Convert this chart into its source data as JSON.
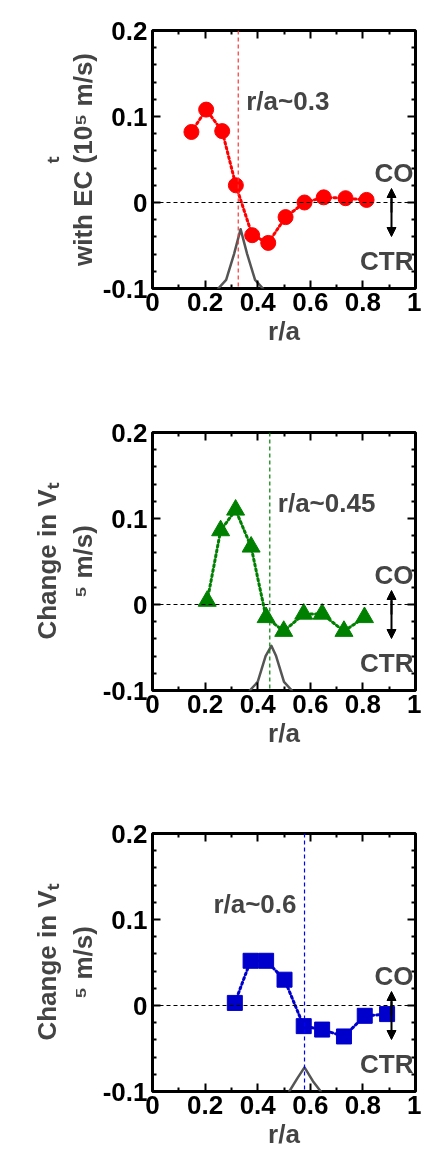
{
  "chart_data": [
    {
      "type": "line",
      "ylabel": "ₜ\nwith EC (10⁵ m/s)",
      "xlabel": "r/a",
      "xlim": [
        0,
        1
      ],
      "ylim": [
        -0.1,
        0.2
      ],
      "xticks": [
        0,
        0.2,
        0.4,
        0.6,
        0.8,
        1
      ],
      "yticks": [
        -0.1,
        0,
        0.1,
        0.2
      ],
      "marker": "circle",
      "line_style": "dotted",
      "grid": false,
      "series": [
        {
          "color": "#ff0000",
          "x": [
            0.148,
            0.204,
            0.265,
            0.317,
            0.379,
            0.44,
            0.506,
            0.578,
            0.651,
            0.734,
            0.814
          ],
          "values": [
            0.082,
            0.108,
            0.083,
            0.02,
            -0.038,
            -0.047,
            -0.017,
            0.0,
            0.006,
            0.005,
            0.003
          ]
        },
        {
          "color": "#555555",
          "marker": "none",
          "line_style": "solid",
          "x": [
            0.25,
            0.28,
            0.31,
            0.335,
            0.36,
            0.39,
            0.42
          ],
          "values": [
            -0.1,
            -0.09,
            -0.06,
            -0.031,
            -0.06,
            -0.09,
            -0.1
          ]
        }
      ],
      "ref_lines": [
        {
          "axis": "x",
          "value": 0.326,
          "label": "r/a~0.3",
          "color": "#ff3333",
          "line_style": "dashed"
        },
        {
          "axis": "y",
          "value": 0,
          "color": "#000000",
          "line_style": "dashed"
        }
      ],
      "annotations": [
        "CO",
        "CTR"
      ]
    },
    {
      "type": "line",
      "ylabel": "Change in Vₜ\n⁵ m/s)",
      "xlabel": "r/a",
      "xlim": [
        0,
        1
      ],
      "ylim": [
        -0.1,
        0.2
      ],
      "xticks": [
        0,
        0.2,
        0.4,
        0.6,
        0.8,
        1
      ],
      "yticks": [
        -0.1,
        0,
        0.1,
        0.2
      ],
      "marker": "triangle",
      "line_style": "dotted",
      "grid": false,
      "series": [
        {
          "color": "#008000",
          "x": [
            0.208,
            0.259,
            0.316,
            0.375,
            0.432,
            0.499,
            0.575,
            0.645,
            0.728,
            0.806
          ],
          "values": [
            0.004,
            0.086,
            0.11,
            0.067,
            -0.015,
            -0.031,
            -0.011,
            -0.011,
            -0.031,
            -0.015
          ]
        },
        {
          "color": "#555555",
          "marker": "none",
          "line_style": "solid",
          "x": [
            0.37,
            0.4,
            0.43,
            0.452,
            0.47,
            0.5,
            0.53
          ],
          "values": [
            -0.1,
            -0.09,
            -0.06,
            -0.048,
            -0.06,
            -0.09,
            -0.1
          ]
        }
      ],
      "ref_lines": [
        {
          "axis": "x",
          "value": 0.446,
          "label": "r/a~0.45",
          "color": "#008000",
          "line_style": "dashed"
        },
        {
          "axis": "y",
          "value": 0,
          "color": "#000000",
          "line_style": "dashed"
        }
      ],
      "annotations": [
        "CO",
        "CTR"
      ]
    },
    {
      "type": "line",
      "ylabel": "Change in Vₜ\n⁵ m/s)",
      "xlabel": "r/a",
      "xlim": [
        0,
        1
      ],
      "ylim": [
        -0.1,
        0.2
      ],
      "xticks": [
        0,
        0.2,
        0.4,
        0.6,
        0.8,
        1
      ],
      "yticks": [
        -0.1,
        0,
        0.1,
        0.2
      ],
      "marker": "square",
      "line_style": "dotted",
      "grid": false,
      "series": [
        {
          "color": "#0000cc",
          "x": [
            0.313,
            0.373,
            0.432,
            0.502,
            0.575,
            0.645,
            0.728,
            0.807,
            0.892
          ],
          "values": [
            0.003,
            0.052,
            0.052,
            0.03,
            -0.024,
            -0.028,
            -0.036,
            -0.012,
            -0.01
          ]
        },
        {
          "color": "#555555",
          "marker": "none",
          "line_style": "solid",
          "x": [
            0.52,
            0.55,
            0.578,
            0.61,
            0.64
          ],
          "values": [
            -0.1,
            -0.085,
            -0.072,
            -0.088,
            -0.1
          ]
        }
      ],
      "ref_lines": [
        {
          "axis": "x",
          "value": 0.578,
          "label": "r/a~0.6",
          "color": "#0000ff",
          "line_style": "dashed"
        },
        {
          "axis": "y",
          "value": 0,
          "color": "#000000",
          "line_style": "dashed"
        }
      ],
      "annotations": [
        "CO",
        "CTR"
      ]
    }
  ]
}
